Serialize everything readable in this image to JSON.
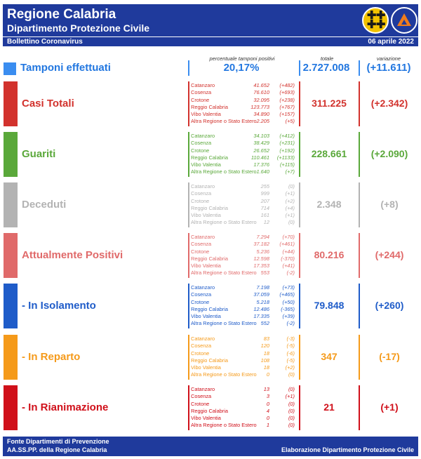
{
  "header": {
    "title": "Regione Calabria",
    "subtitle": "Dipartimento Protezione Civile",
    "bulletin": "Bollettino Coronavirus",
    "date": "06 aprile 2022"
  },
  "column_headers": {
    "pct": "percentuale tamponi positivi",
    "total": "totale",
    "variation": "variazione"
  },
  "tamponi": {
    "label": "Tamponi effettuati",
    "pct": "20,17%",
    "total": "2.727.008",
    "variation": "(+11.611)",
    "color": "#2277e0"
  },
  "sections": [
    {
      "label": "Casi Totali",
      "color": "#d2322d",
      "total": "311.225",
      "variation": "(+2.342)",
      "provinces": [
        {
          "name": "Catanzaro",
          "value": "41.652",
          "delta": "(+482)"
        },
        {
          "name": "Cosenza",
          "value": "76.610",
          "delta": "(+693)"
        },
        {
          "name": "Crotone",
          "value": "32.095",
          "delta": "(+238)"
        },
        {
          "name": "Reggio Calabria",
          "value": "123.773",
          "delta": "(+767)"
        },
        {
          "name": "Vibo Valentia",
          "value": "34.890",
          "delta": "(+157)"
        },
        {
          "name": "Altra Regione o Stato Estero",
          "value": "2.205",
          "delta": "(+5)"
        }
      ]
    },
    {
      "label": "Guariti",
      "color": "#5aa83a",
      "total": "228.661",
      "variation": "(+2.090)",
      "provinces": [
        {
          "name": "Catanzaro",
          "value": "34.103",
          "delta": "(+412)"
        },
        {
          "name": "Cosenza",
          "value": "38.429",
          "delta": "(+231)"
        },
        {
          "name": "Crotone",
          "value": "26.652",
          "delta": "(+192)"
        },
        {
          "name": "Reggio Calabria",
          "value": "110.461",
          "delta": "(+1133)"
        },
        {
          "name": "Vibo Valentia",
          "value": "17.376",
          "delta": "(+115)"
        },
        {
          "name": "Altra Regione o Stato Estero",
          "value": "1.640",
          "delta": "(+7)"
        }
      ]
    },
    {
      "label": "Deceduti",
      "color": "#b3b3b3",
      "total": "2.348",
      "variation": "(+8)",
      "provinces": [
        {
          "name": "Catanzaro",
          "value": "255",
          "delta": "(0)"
        },
        {
          "name": "Cosenza",
          "value": "999",
          "delta": "(+1)"
        },
        {
          "name": "Crotone",
          "value": "207",
          "delta": "(+2)"
        },
        {
          "name": "Reggio Calabria",
          "value": "714",
          "delta": "(+4)"
        },
        {
          "name": "Vibo Valentia",
          "value": "161",
          "delta": "(+1)"
        },
        {
          "name": "Altra Regione o Stato Estero",
          "value": "12",
          "delta": "(0)"
        }
      ]
    },
    {
      "label": "Attualmente Positivi",
      "color": "#e06a6a",
      "total": "80.216",
      "variation": "(+244)",
      "provinces": [
        {
          "name": "Catanzaro",
          "value": "7.294",
          "delta": "(+70)"
        },
        {
          "name": "Cosenza",
          "value": "37.182",
          "delta": "(+461)"
        },
        {
          "name": "Crotone",
          "value": "5.236",
          "delta": "(+44)"
        },
        {
          "name": "Reggio Calabria",
          "value": "12.598",
          "delta": "(-370)"
        },
        {
          "name": "Vibo Valentia",
          "value": "17.353",
          "delta": "(+41)"
        },
        {
          "name": "Altra Regione o Stato Estero",
          "value": "553",
          "delta": "(-2)"
        }
      ]
    },
    {
      "label": "- In Isolamento",
      "color": "#1f5cc9",
      "total": "79.848",
      "variation": "(+260)",
      "provinces": [
        {
          "name": "Catanzaro",
          "value": "7.198",
          "delta": "(+73)"
        },
        {
          "name": "Cosenza",
          "value": "37.059",
          "delta": "(+465)"
        },
        {
          "name": "Crotone",
          "value": "5.218",
          "delta": "(+50)"
        },
        {
          "name": "Reggio Calabria",
          "value": "12.486",
          "delta": "(-365)"
        },
        {
          "name": "Vibo Valentia",
          "value": "17.335",
          "delta": "(+39)"
        },
        {
          "name": "Altra Regione o Stato Estero",
          "value": "552",
          "delta": "(-2)"
        }
      ]
    },
    {
      "label": "- In Reparto",
      "color": "#f59a1a",
      "total": "347",
      "variation": "(-17)",
      "provinces": [
        {
          "name": "Catanzaro",
          "value": "83",
          "delta": "(-3)"
        },
        {
          "name": "Cosenza",
          "value": "120",
          "delta": "(-5)"
        },
        {
          "name": "Crotone",
          "value": "18",
          "delta": "(-6)"
        },
        {
          "name": "Reggio Calabria",
          "value": "108",
          "delta": "(-5)"
        },
        {
          "name": "Vibo Valentia",
          "value": "18",
          "delta": "(+2)"
        },
        {
          "name": "Altra Regione o Stato Estero",
          "value": "0",
          "delta": "(0)"
        }
      ]
    },
    {
      "label": "- In Rianimazione",
      "color": "#d0101a",
      "total": "21",
      "variation": "(+1)",
      "provinces": [
        {
          "name": "Catanzaro",
          "value": "13",
          "delta": "(0)"
        },
        {
          "name": "Cosenza",
          "value": "3",
          "delta": "(+1)"
        },
        {
          "name": "Crotone",
          "value": "0",
          "delta": "(0)"
        },
        {
          "name": "Reggio Calabria",
          "value": "4",
          "delta": "(0)"
        },
        {
          "name": "Vibo Valentia",
          "value": "0",
          "delta": "(0)"
        },
        {
          "name": "Altra Regione o Stato Estero",
          "value": "1",
          "delta": "(0)"
        }
      ]
    }
  ],
  "footer": {
    "source_line1": "Fonte Dipartimenti di Prevenzione",
    "source_line2": "AA.SS.PP.  della Regione Calabria",
    "credit": "Elaborazione Dipartimento Protezione Civile"
  },
  "colors": {
    "header_bg": "#1f3a9c",
    "logo_calabria": "#f2c200",
    "logo_pc_triangle": "#f07c1c"
  },
  "icons": [
    "calabria-coat-of-arms-icon",
    "protezione-civile-logo-icon"
  ]
}
